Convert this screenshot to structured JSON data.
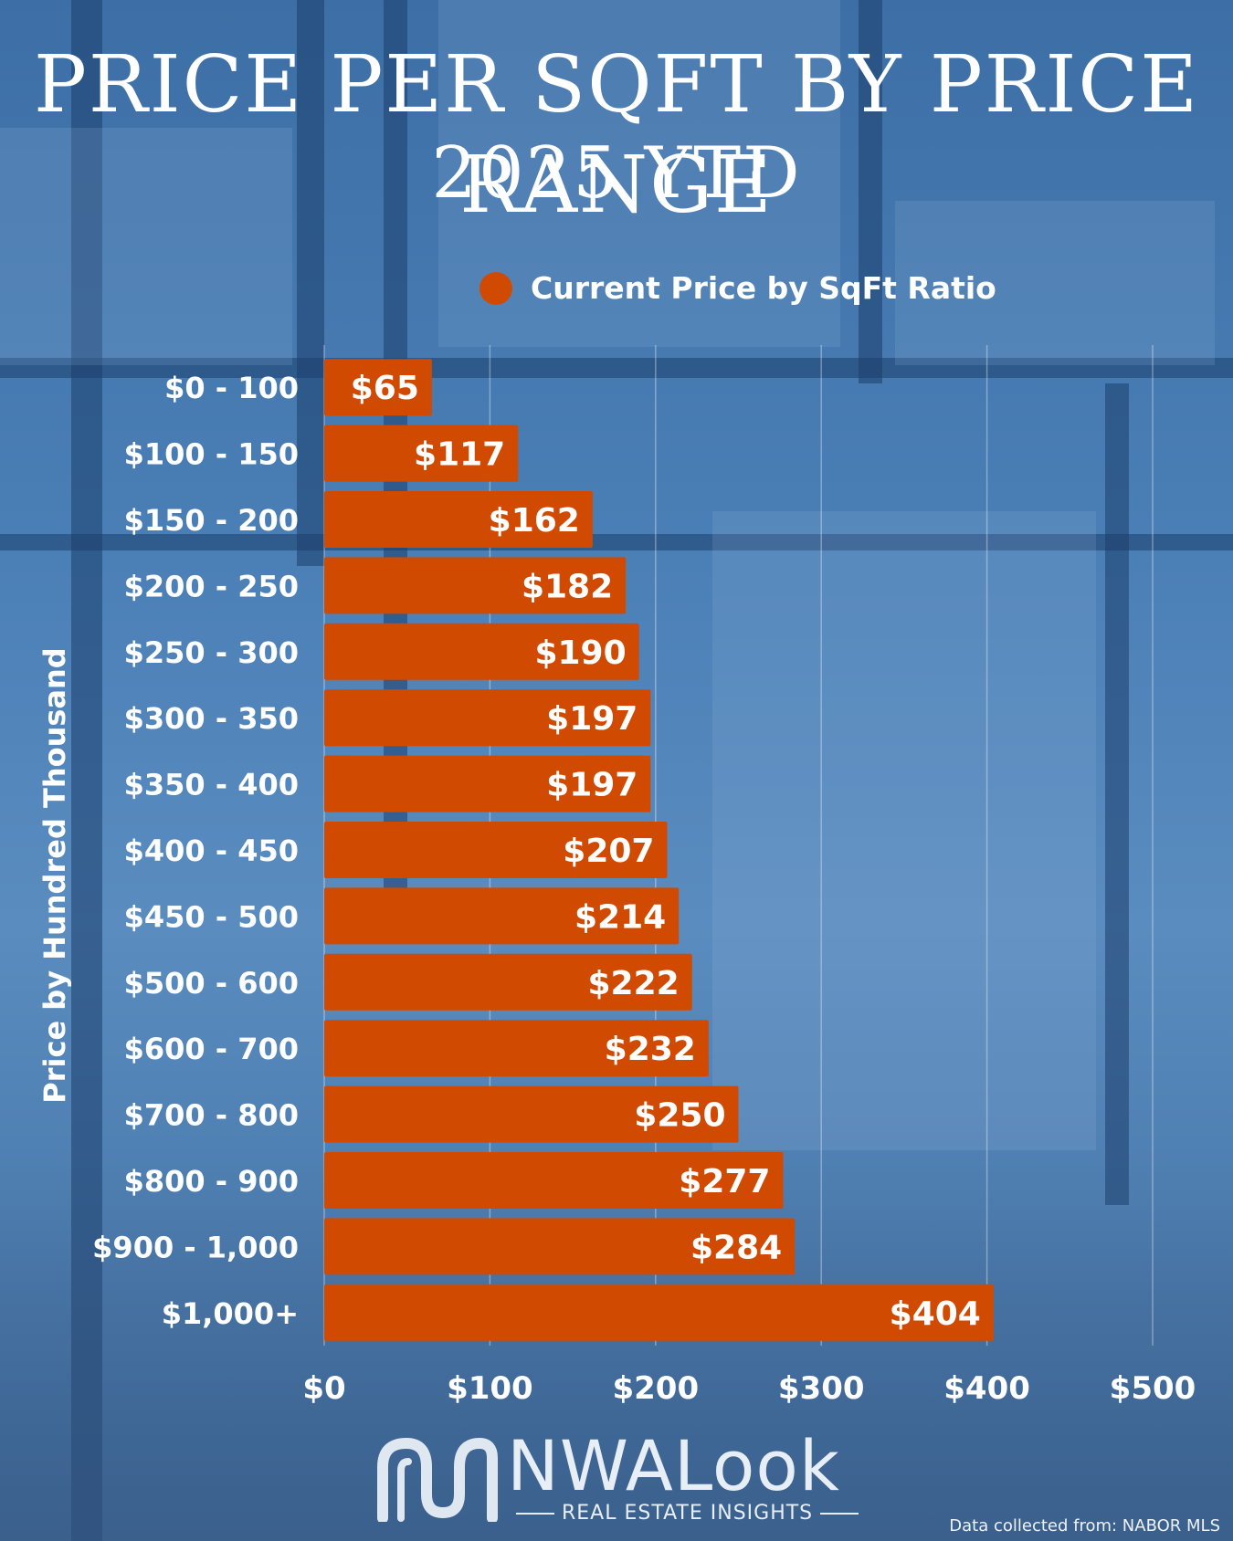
{
  "title_line1": "PRICE PER SQFT BY PRICE RANGE",
  "title_line2": "2025 YTD",
  "legend": {
    "label": "Current Price by SqFt Ratio",
    "color": "#d04a02"
  },
  "brand": {
    "name": "NWALook",
    "tagline": "REAL ESTATE INSIGHTS"
  },
  "source_note": "Data collected from: NABOR MLS",
  "chart_data": {
    "type": "bar",
    "orientation": "horizontal",
    "ylabel": "Price by Hundred Thousand",
    "xlabel": "",
    "categories": [
      "$0 - 100",
      "$100 - 150",
      "$150 - 200",
      "$200 - 250",
      "$250 - 300",
      "$300 - 350",
      "$350 - 400",
      "$400 - 450",
      "$450 - 500",
      "$500 - 600",
      "$600 - 700",
      "$700 - 800",
      "$800 - 900",
      "$900 - 1,000",
      "$1,000+"
    ],
    "series": [
      {
        "name": "Current Price by SqFt Ratio",
        "values": [
          65,
          117,
          162,
          182,
          190,
          197,
          197,
          207,
          214,
          222,
          232,
          250,
          277,
          284,
          404
        ]
      }
    ],
    "value_labels": [
      "$65",
      "$117",
      "$162",
      "$182",
      "$190",
      "$197",
      "$197",
      "$207",
      "$214",
      "$222",
      "$232",
      "$250",
      "$277",
      "$284",
      "$404"
    ],
    "xlim": [
      0,
      500
    ],
    "xticks": [
      0,
      100,
      200,
      300,
      400,
      500
    ],
    "xtick_labels": [
      "$0",
      "$100",
      "$200",
      "$300",
      "$400",
      "$500"
    ],
    "grid": true,
    "legend_position": "top",
    "bar_color": "#d04a02"
  }
}
